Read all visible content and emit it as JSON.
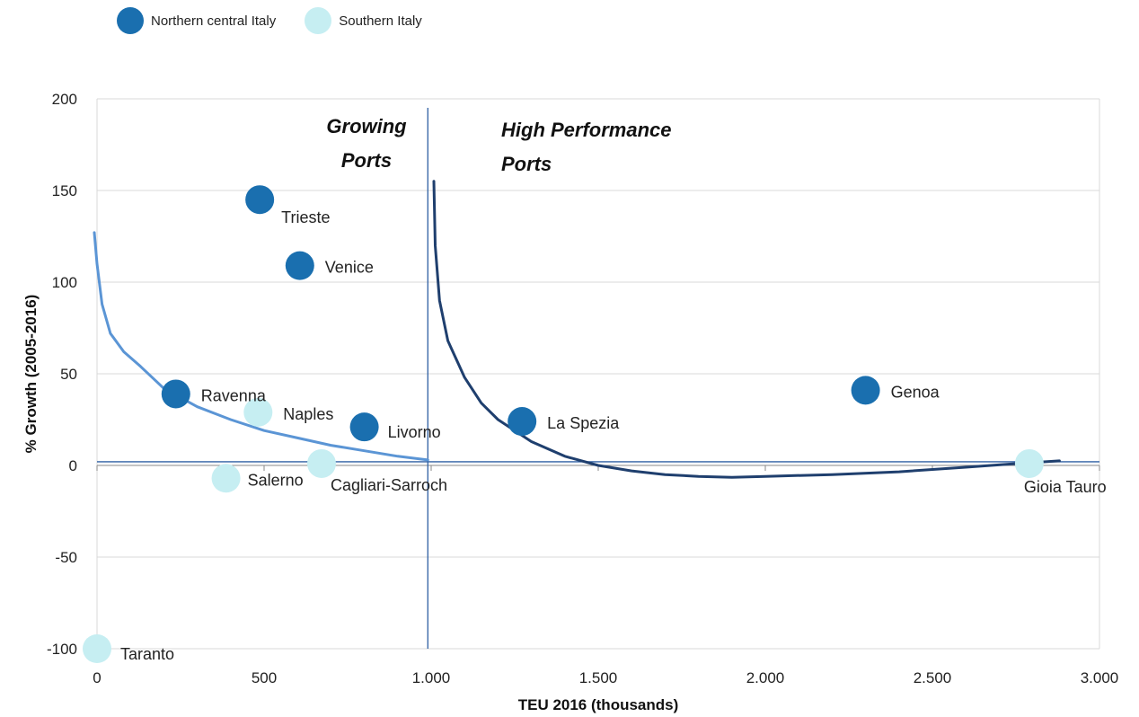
{
  "chart_data": {
    "type": "scatter",
    "xlabel": "TEU 2016 (thousands)",
    "ylabel": "% Growth (2005-2016)",
    "xlim": [
      0,
      3000
    ],
    "ylim": [
      -100,
      200
    ],
    "x_ticks": [
      "0",
      "500",
      "1.000",
      "1.500",
      "2.000",
      "2.500",
      "3.000"
    ],
    "y_ticks": [
      "-100",
      "-50",
      "0",
      "50",
      "100",
      "150",
      "200"
    ],
    "x_tick_values": [
      0,
      500,
      1000,
      1500,
      2000,
      2500,
      3000
    ],
    "y_tick_values": [
      -100,
      -50,
      0,
      50,
      100,
      150,
      200
    ],
    "grid": "horizontal",
    "legend_position": "top-left",
    "series": [
      {
        "name": "Northern central Italy",
        "color": "#1a6faf",
        "points": [
          {
            "label": "Trieste",
            "x": 487,
            "y": 145
          },
          {
            "label": "Venice",
            "x": 607,
            "y": 109
          },
          {
            "label": "Ravenna",
            "x": 236,
            "y": 39
          },
          {
            "label": "Livorno",
            "x": 800,
            "y": 21
          },
          {
            "label": "La Spezia",
            "x": 1272,
            "y": 24
          },
          {
            "label": "Genoa",
            "x": 2300,
            "y": 41
          }
        ]
      },
      {
        "name": "Southern Italy",
        "color": "#c6eef2",
        "points": [
          {
            "label": "Naples",
            "x": 482,
            "y": 29
          },
          {
            "label": "Salerno",
            "x": 386,
            "y": -7
          },
          {
            "label": "Cagliari-Sarroch",
            "x": 672,
            "y": 1
          },
          {
            "label": "Gioia Tauro",
            "x": 2790,
            "y": 1
          },
          {
            "label": "Taranto",
            "x": 0,
            "y": -100
          }
        ]
      }
    ],
    "annotations": [
      {
        "text_lines": [
          "Growing",
          "Ports"
        ],
        "color": "#111111"
      },
      {
        "text_lines": [
          "High Performance",
          "Ports"
        ],
        "color": "#111111"
      }
    ],
    "reference_lines": {
      "vertical_x": 990,
      "horizontal_y": 2
    },
    "trend_curves": [
      {
        "color": "#5b95d5",
        "points": [
          [
            -8,
            127
          ],
          [
            0,
            110
          ],
          [
            15,
            88
          ],
          [
            40,
            72
          ],
          [
            80,
            62
          ],
          [
            130,
            54
          ],
          [
            200,
            42
          ],
          [
            300,
            32
          ],
          [
            400,
            25
          ],
          [
            500,
            19
          ],
          [
            600,
            15
          ],
          [
            700,
            11
          ],
          [
            800,
            8
          ],
          [
            900,
            5
          ],
          [
            990,
            3
          ]
        ]
      },
      {
        "color": "#1f3f6e",
        "points": [
          [
            1008,
            155
          ],
          [
            1012,
            120
          ],
          [
            1025,
            90
          ],
          [
            1050,
            68
          ],
          [
            1100,
            48
          ],
          [
            1150,
            34
          ],
          [
            1200,
            25
          ],
          [
            1300,
            13
          ],
          [
            1400,
            5
          ],
          [
            1500,
            0
          ],
          [
            1600,
            -3
          ],
          [
            1700,
            -5
          ],
          [
            1800,
            -6
          ],
          [
            1900,
            -6.5
          ],
          [
            2000,
            -6
          ],
          [
            2200,
            -5
          ],
          [
            2400,
            -3.5
          ],
          [
            2600,
            -1
          ],
          [
            2750,
            1
          ],
          [
            2880,
            2.5
          ]
        ]
      }
    ]
  }
}
